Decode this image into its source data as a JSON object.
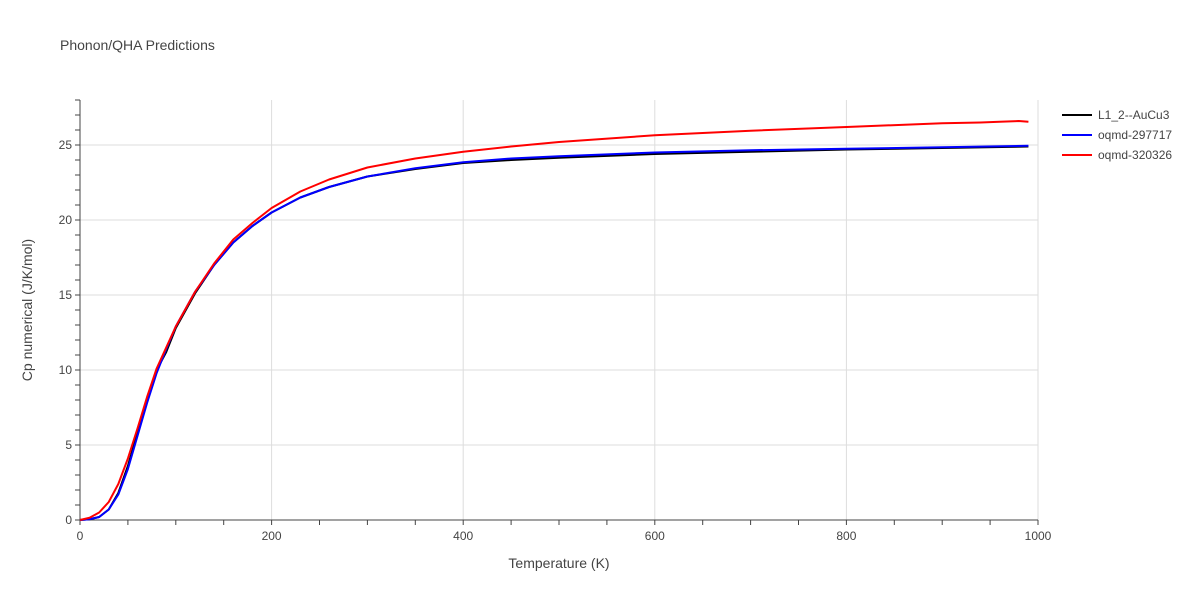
{
  "chart_data": {
    "type": "line",
    "title": "Phonon/QHA Predictions",
    "xlabel": "Temperature (K)",
    "ylabel": "Cp numerical (J/K/mol)",
    "xlim": [
      0,
      1000
    ],
    "ylim": [
      0,
      28
    ],
    "xticks": [
      0,
      200,
      400,
      600,
      800,
      1000
    ],
    "yticks": [
      0,
      5,
      10,
      15,
      20,
      25
    ],
    "grid": true,
    "legend_position": "top-right",
    "series": [
      {
        "name": "L1_2--AuCu3",
        "color": "#000000",
        "x": [
          0,
          10,
          20,
          30,
          40,
          50,
          60,
          70,
          80,
          90,
          100,
          120,
          140,
          160,
          180,
          200,
          230,
          260,
          300,
          350,
          400,
          450,
          500,
          600,
          700,
          800,
          900,
          990
        ],
        "y": [
          0,
          0.05,
          0.2,
          0.7,
          1.8,
          3.6,
          5.8,
          8.0,
          10.0,
          11.2,
          12.8,
          15.1,
          17.0,
          18.5,
          19.6,
          20.5,
          21.5,
          22.2,
          22.9,
          23.4,
          23.8,
          24.0,
          24.15,
          24.4,
          24.55,
          24.7,
          24.8,
          24.9
        ]
      },
      {
        "name": "oqmd-297717",
        "color": "#0000ff",
        "x": [
          0,
          10,
          20,
          30,
          40,
          50,
          60,
          70,
          80,
          90,
          100,
          120,
          140,
          160,
          180,
          200,
          230,
          260,
          300,
          350,
          400,
          450,
          500,
          600,
          700,
          800,
          900,
          990
        ],
        "y": [
          0,
          0.05,
          0.2,
          0.7,
          1.7,
          3.4,
          5.6,
          7.8,
          9.8,
          11.4,
          12.9,
          15.2,
          17.0,
          18.5,
          19.6,
          20.5,
          21.5,
          22.2,
          22.9,
          23.45,
          23.85,
          24.1,
          24.25,
          24.5,
          24.65,
          24.75,
          24.85,
          24.95
        ]
      },
      {
        "name": "oqmd-320326",
        "color": "#ff0000",
        "x": [
          0,
          10,
          20,
          30,
          40,
          50,
          60,
          70,
          80,
          90,
          100,
          120,
          140,
          160,
          180,
          200,
          230,
          260,
          300,
          350,
          400,
          450,
          500,
          600,
          700,
          800,
          900,
          940,
          960,
          980,
          990
        ],
        "y": [
          0,
          0.15,
          0.5,
          1.2,
          2.4,
          4.1,
          6.1,
          8.2,
          10.1,
          11.5,
          12.9,
          15.2,
          17.1,
          18.7,
          19.8,
          20.8,
          21.9,
          22.7,
          23.5,
          24.1,
          24.55,
          24.9,
          25.2,
          25.65,
          25.95,
          26.2,
          26.45,
          26.5,
          26.55,
          26.6,
          26.55
        ]
      }
    ]
  }
}
